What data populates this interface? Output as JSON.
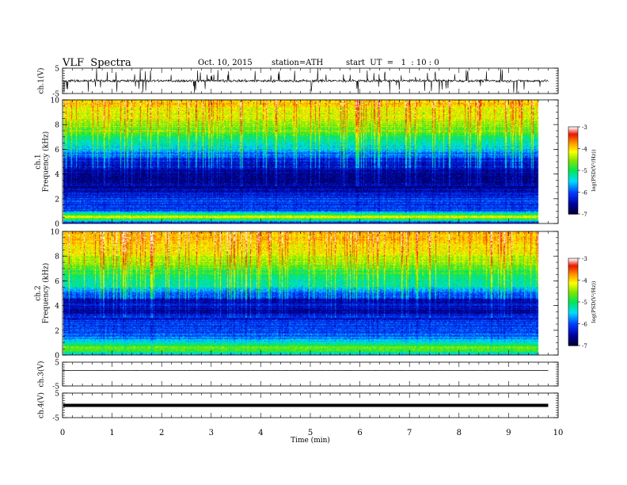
{
  "header": {
    "title": "VLF  Spectra",
    "date": "Oct. 10, 2015",
    "station": "station=ATH",
    "start": "start  UT  =   1  : 10 : 0"
  },
  "chart_data": [
    {
      "type": "line",
      "panel": "ch1-waveform",
      "ylabel": "ch.1(V)",
      "ytick_labels": [
        "5",
        "-5"
      ],
      "ylim": [
        -5,
        5
      ],
      "xlim": [
        0,
        10
      ],
      "x_end": 9.8,
      "baseline": 0,
      "color": "#000000"
    },
    {
      "type": "heatmap",
      "panel": "ch1-spectrogram",
      "ylabel": "ch.1\nFrequency  (kHz)",
      "ytick_labels": [
        "0",
        "2",
        "4",
        "6",
        "8",
        "10"
      ],
      "ylim": [
        0,
        10
      ],
      "xlim": [
        0,
        10
      ],
      "x_end": 9.8,
      "profile_khz": [
        0,
        0.5,
        1,
        1.5,
        2,
        2.5,
        3,
        3.5,
        4,
        4.5,
        5,
        5.5,
        6,
        6.5,
        7,
        7.5,
        8,
        8.5,
        9,
        9.5,
        10
      ],
      "profile_logpsd": [
        -6.2,
        -4.0,
        -6.0,
        -6.0,
        -6.0,
        -6.3,
        -6.5,
        -6.7,
        -6.6,
        -6.6,
        -6.5,
        -6.1,
        -5.7,
        -5.4,
        -5.1,
        -4.8,
        -4.6,
        -4.4,
        -4.3,
        -4.2,
        -4.1
      ],
      "colorbar": {
        "label": "log(PSD(V²/Hz))",
        "range": [
          -7,
          -3
        ],
        "tick_labels": [
          "-7",
          "-6",
          "-5",
          "-4",
          "-3"
        ]
      }
    },
    {
      "type": "heatmap",
      "panel": "ch2-spectrogram",
      "ylabel": "ch.2\nFrequency  (kHz)",
      "ytick_labels": [
        "0",
        "2",
        "4",
        "6",
        "8",
        "10"
      ],
      "ylim": [
        0,
        10
      ],
      "xlim": [
        0,
        10
      ],
      "x_end": 9.8,
      "profile_khz": [
        0,
        0.5,
        1,
        1.5,
        2,
        2.5,
        3,
        3.5,
        4,
        4.5,
        5,
        5.5,
        6,
        6.5,
        7,
        7.5,
        8,
        8.5,
        9,
        9.5,
        10
      ],
      "profile_logpsd": [
        -5.5,
        -4.5,
        -5.3,
        -5.8,
        -6.0,
        -6.0,
        -6.2,
        -6.6,
        -6.4,
        -6.5,
        -6.0,
        -5.6,
        -5.3,
        -5.1,
        -4.9,
        -4.6,
        -4.4,
        -4.3,
        -4.2,
        -4.1,
        -4.0
      ],
      "colorbar": {
        "label": "log(PSD(V²/Hz))",
        "range": [
          -7,
          -3
        ],
        "tick_labels": [
          "-7",
          "-6",
          "-5",
          "-4",
          "-3"
        ]
      }
    },
    {
      "type": "line",
      "panel": "ch3-waveform",
      "ylabel": "ch.3(V)",
      "ytick_labels": [
        "5",
        "-5"
      ],
      "ylim": [
        -5,
        5
      ],
      "xlim": [
        0,
        10
      ],
      "x_end": 9.8,
      "baseline": 1.5,
      "color": "#000000"
    },
    {
      "type": "line",
      "panel": "ch4-waveform",
      "ylabel": "ch.4(V)",
      "ytick_labels": [
        "5",
        "-5"
      ],
      "ylim": [
        -5,
        5
      ],
      "xlim": [
        0,
        10
      ],
      "x_end": 9.8,
      "baseline": 0,
      "color": "#000000"
    }
  ],
  "xaxis": {
    "label": "Time  (min)",
    "tick_labels": [
      "0",
      "1",
      "2",
      "3",
      "4",
      "5",
      "6",
      "7",
      "8",
      "9",
      "10"
    ],
    "range": [
      0,
      10
    ]
  }
}
